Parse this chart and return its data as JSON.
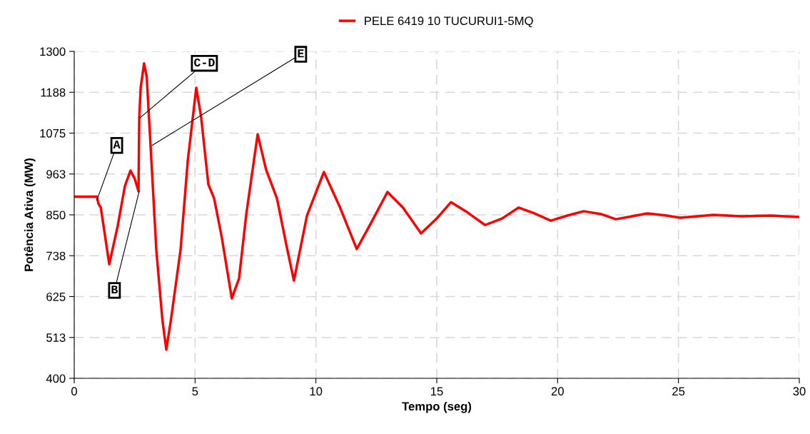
{
  "chart_data": {
    "type": "line",
    "xlabel": "Tempo (seg)",
    "ylabel": "Potência Ativa (MW)",
    "xlim": [
      0,
      30
    ],
    "xticks": [
      0,
      5,
      10,
      15,
      20,
      25,
      30
    ],
    "ylim": [
      400,
      1300
    ],
    "yticks": [
      400,
      {
        "value": 512.5,
        "label": "513"
      },
      625,
      {
        "value": 737.5,
        "label": "738"
      },
      850,
      {
        "value": 962.5,
        "label": "963"
      },
      1075,
      {
        "value": 1187.5,
        "label": "1188"
      },
      1300
    ],
    "grid": true,
    "legend": "top",
    "line_style": "solid",
    "marker": "none",
    "series": [
      {
        "name": "PELE 6419 10 TUCURUI1-5MQ",
        "color": "#ff0000",
        "x": [
          0,
          0.94,
          1.0,
          1.1,
          1.45,
          1.8,
          2.1,
          2.33,
          2.5,
          2.66,
          2.69,
          2.75,
          2.89,
          3.0,
          3.16,
          3.4,
          3.65,
          3.81,
          4.0,
          4.4,
          4.7,
          5.05,
          5.25,
          5.55,
          5.79,
          6.1,
          6.52,
          6.82,
          7.12,
          7.59,
          7.94,
          8.39,
          8.8,
          9.09,
          9.63,
          10.33,
          11.0,
          11.69,
          12.3,
          12.96,
          13.6,
          14.35,
          15.0,
          15.59,
          16.2,
          17.0,
          17.7,
          18.39,
          19.0,
          19.72,
          20.4,
          21.08,
          21.8,
          22.41,
          23.0,
          23.71,
          24.4,
          25.07,
          25.8,
          26.45,
          27.0,
          27.6,
          28.2,
          28.8,
          29.4,
          30
        ],
        "values": [
          900,
          900,
          881,
          870,
          714,
          820,
          930,
          972,
          950,
          915,
          1117,
          1200,
          1267,
          1230,
          1039,
          750,
          560,
          479,
          560,
          754,
          1000,
          1200,
          1120,
          934,
          895,
          790,
          620,
          675,
          852,
          1072,
          974,
          895,
          760,
          669,
          848,
          968,
          870,
          756,
          830,
          913,
          870,
          799,
          840,
          885,
          860,
          822,
          840,
          870,
          855,
          834,
          848,
          860,
          852,
          838,
          845,
          854,
          849,
          842,
          846,
          850,
          848,
          846,
          847,
          848,
          846,
          844
        ]
      }
    ],
    "annotations": [
      {
        "text": "A",
        "x": 0.94,
        "y": 891
      },
      {
        "text": "B",
        "x": 2.69,
        "y": 915
      },
      {
        "text": "C-D",
        "x": 2.72,
        "y": 1117
      },
      {
        "text": "E",
        "x": 3.22,
        "y": 1041
      }
    ]
  }
}
